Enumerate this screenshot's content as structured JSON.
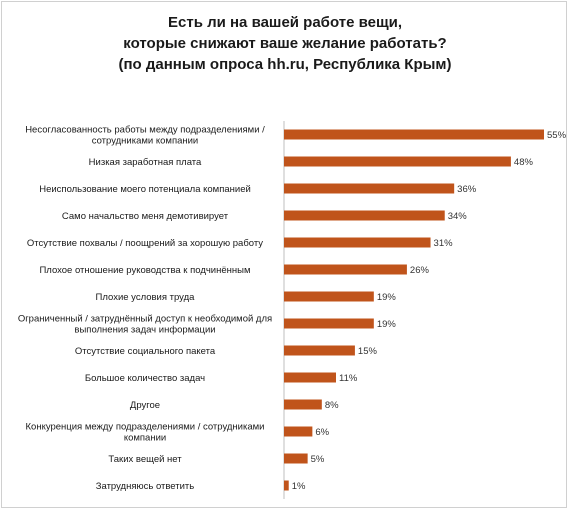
{
  "chart_data": {
    "type": "bar",
    "orientation": "horizontal",
    "title_lines": [
      "Есть ли на вашей работе вещи,",
      "которые снижают ваше желание работать?",
      "(по данным опроса hh.ru, Республика Крым)"
    ],
    "categories": [
      [
        "Несогласованность работы между подразделениями /",
        "сотрудниками компании"
      ],
      [
        "Низкая заработная плата"
      ],
      [
        "Неиспользование моего потенциала компанией"
      ],
      [
        "Само начальство меня демотивирует"
      ],
      [
        "Отсутствие похвалы / поощрений за хорошую работу"
      ],
      [
        "Плохое отношение руководства к подчинённым"
      ],
      [
        "Плохие условия труда"
      ],
      [
        "Ограниченный / затруднённый доступ к необходимой для",
        "выполнения задач информации"
      ],
      [
        "Отсутствие социального пакета"
      ],
      [
        "Большое количество задач"
      ],
      [
        "Другое"
      ],
      [
        "Конкуренция между подразделениями / сотрудниками",
        "компании"
      ],
      [
        "Таких вещей нет"
      ],
      [
        "Затрудняюсь ответить"
      ]
    ],
    "values": [
      55,
      48,
      36,
      34,
      31,
      26,
      19,
      19,
      15,
      11,
      8,
      6,
      5,
      1
    ],
    "value_labels": [
      "55%",
      "48%",
      "36%",
      "34%",
      "31%",
      "26%",
      "19%",
      "19%",
      "15%",
      "11%",
      "8%",
      "6%",
      "5%",
      "1%"
    ],
    "xlim": [
      0,
      55
    ],
    "bar_color": "#c0541b",
    "grid": false,
    "legend": "none"
  }
}
